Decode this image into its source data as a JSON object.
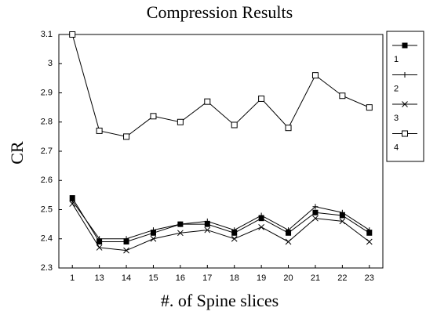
{
  "chart_data": {
    "type": "line",
    "title": "Compression Results",
    "x_label": "#. of Spine slices",
    "y_label": "CR",
    "categories": [
      "1",
      "13",
      "14",
      "15",
      "16",
      "17",
      "18",
      "19",
      "20",
      "21",
      "22",
      "23"
    ],
    "series": [
      {
        "name": "1",
        "color": "#000000",
        "marker": "filled-square",
        "values": [
          2.54,
          2.39,
          2.39,
          2.42,
          2.45,
          2.45,
          2.42,
          2.47,
          2.42,
          2.49,
          2.48,
          2.42
        ]
      },
      {
        "name": "2",
        "color": "#000000",
        "marker": "plus",
        "values": [
          2.53,
          2.4,
          2.4,
          2.43,
          2.45,
          2.46,
          2.43,
          2.48,
          2.43,
          2.51,
          2.49,
          2.43
        ]
      },
      {
        "name": "3",
        "color": "#000000",
        "marker": "cross",
        "values": [
          2.52,
          2.37,
          2.36,
          2.4,
          2.42,
          2.43,
          2.4,
          2.44,
          2.39,
          2.47,
          2.46,
          2.39
        ]
      },
      {
        "name": "4",
        "color": "#000000",
        "marker": "open-square",
        "values": [
          3.1,
          2.77,
          2.75,
          2.82,
          2.8,
          2.87,
          2.79,
          2.88,
          2.78,
          2.96,
          2.89,
          2.85
        ]
      }
    ],
    "ylim": [
      2.3,
      3.1
    ],
    "yticks": [
      2.3,
      2.4,
      2.5,
      2.6,
      2.7,
      2.8,
      2.9,
      3,
      3.1
    ],
    "grid": false,
    "legend": "right"
  }
}
